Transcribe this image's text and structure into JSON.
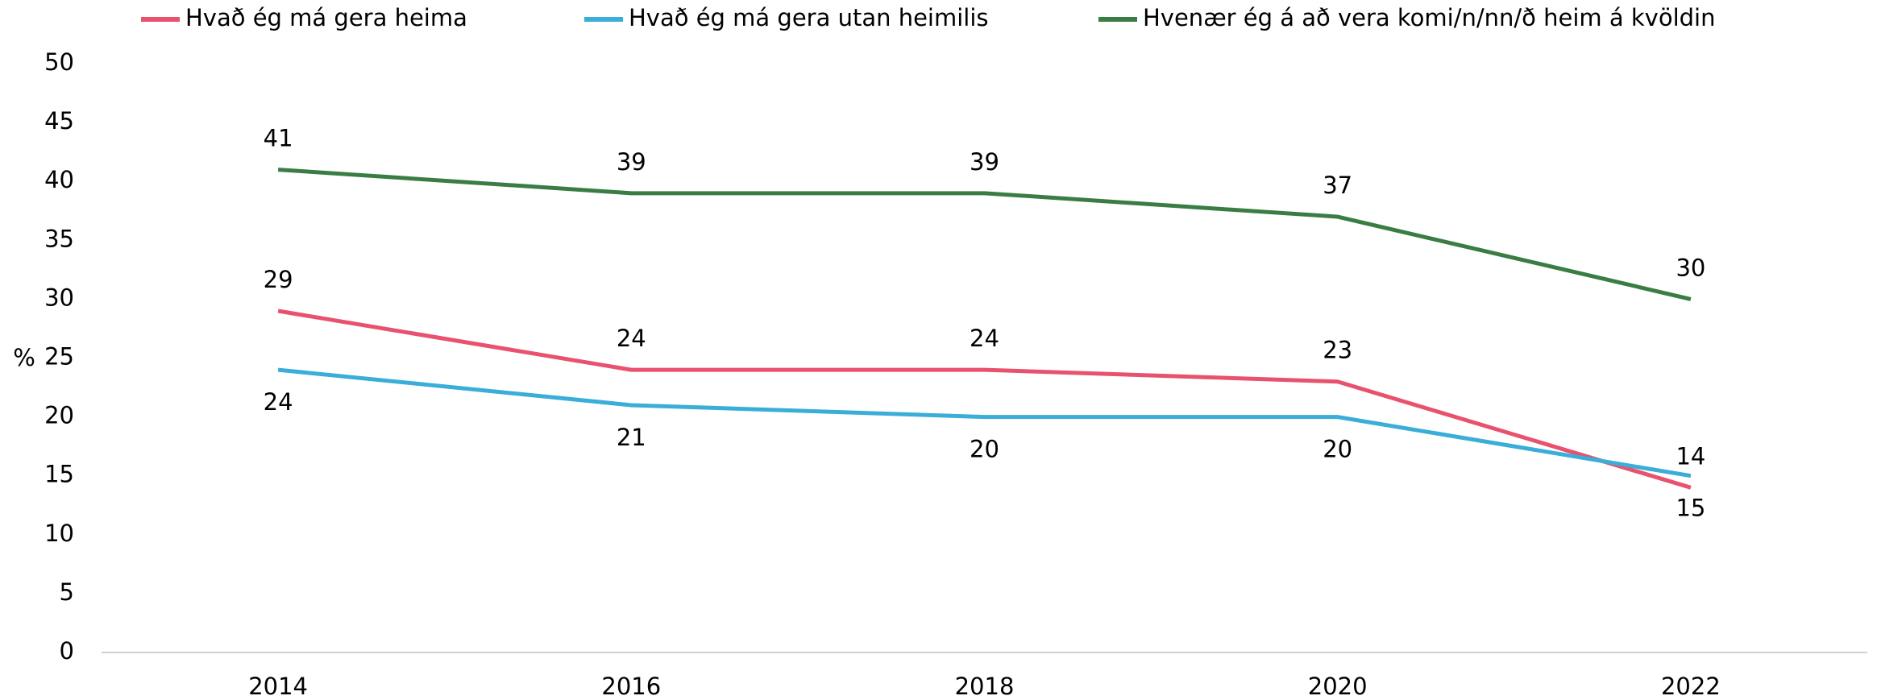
{
  "chart_data": {
    "type": "line",
    "y_label": "%",
    "categories": [
      "2014",
      "2016",
      "2018",
      "2020",
      "2022"
    ],
    "series": [
      {
        "name": "Hvað ég má gera heima",
        "color": "#e8526e",
        "values": [
          29,
          24,
          24,
          23,
          14
        ]
      },
      {
        "name": "Hvað ég má gera utan heimilis",
        "color": "#3aaed8",
        "values": [
          24,
          21,
          20,
          20,
          15
        ]
      },
      {
        "name": "Hvenær ég á að vera komi/n/nn/ð heim á kvöldin",
        "color": "#3a7d44",
        "values": [
          41,
          39,
          39,
          37,
          30
        ]
      }
    ],
    "ylim": [
      0,
      50
    ],
    "yticks": [
      0,
      5,
      10,
      15,
      20,
      25,
      30,
      35,
      40,
      45,
      50
    ],
    "grid": false,
    "legend": "top"
  }
}
